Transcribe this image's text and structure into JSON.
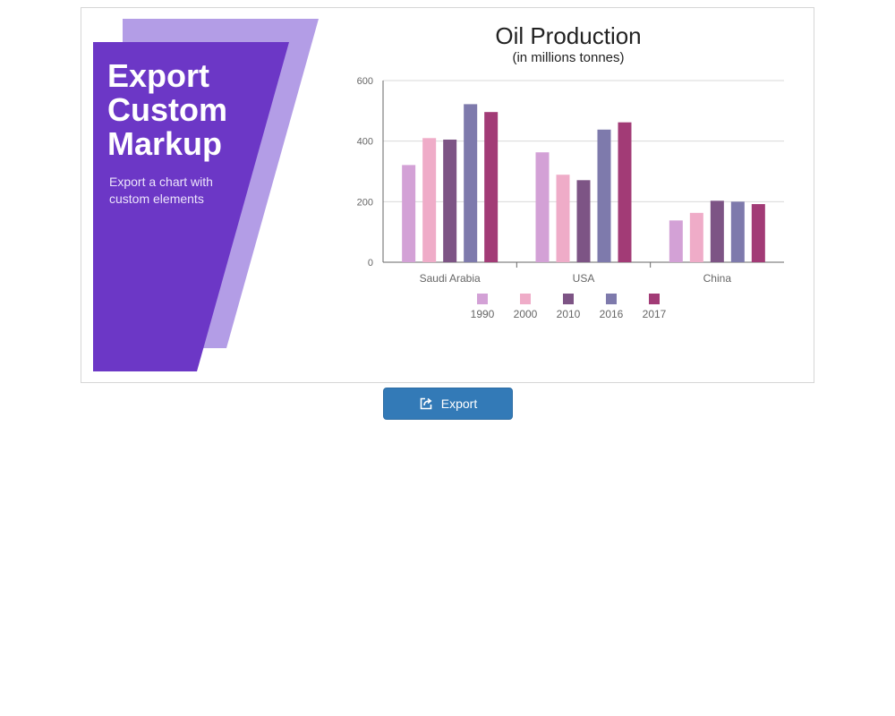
{
  "promo": {
    "title_lines": [
      "Export",
      "Custom",
      "Markup"
    ],
    "subtitle_lines": [
      "Export a chart with",
      "custom elements"
    ],
    "colors": {
      "front": "#6c37c6",
      "back": "#b39de6"
    }
  },
  "export_button": {
    "label": "Export",
    "icon": "export-icon"
  },
  "chart_data": {
    "type": "bar",
    "title": "Oil Production",
    "subtitle": "(in millions tonnes)",
    "xlabel": "",
    "ylabel": "",
    "categories": [
      "Saudi Arabia",
      "USA",
      "China"
    ],
    "series": [
      {
        "name": "1990",
        "values": [
          321,
          363,
          138
        ],
        "color": "#d3a1d6"
      },
      {
        "name": "2000",
        "values": [
          410,
          289,
          163
        ],
        "color": "#efacc8"
      },
      {
        "name": "2010",
        "values": [
          405,
          271,
          203
        ],
        "color": "#7d5485"
      },
      {
        "name": "2016",
        "values": [
          522,
          438,
          200
        ],
        "color": "#7e7aac"
      },
      {
        "name": "2017",
        "values": [
          496,
          462,
          192
        ],
        "color": "#a23b76"
      }
    ],
    "ylim": [
      0,
      600
    ],
    "yticks": [
      0,
      200,
      400,
      600
    ],
    "grid": true,
    "legend": "bottom-center"
  }
}
